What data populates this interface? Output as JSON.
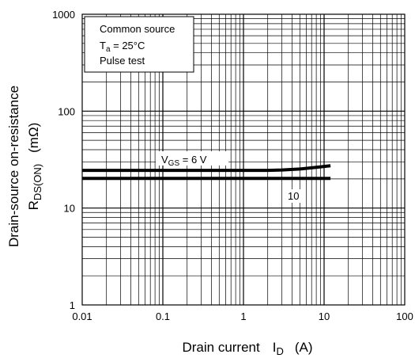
{
  "chart_data": {
    "type": "line",
    "xscale": "log",
    "yscale": "log",
    "xlim": [
      0.01,
      100
    ],
    "ylim": [
      1,
      1000
    ],
    "grid": true,
    "x_ticks": [
      "0.01",
      "0.1",
      "1",
      "10",
      "100"
    ],
    "y_ticks": [
      "1",
      "10",
      "100",
      "1000"
    ],
    "xlabel": {
      "main": "Drain current",
      "symbol": "I",
      "sub": "D",
      "unit": "(A)"
    },
    "ylabel": {
      "main": "Drain-source on-resistance",
      "symbol": "R",
      "sub": "DS(ON)",
      "unit": "(mΩ)"
    },
    "conditions": [
      {
        "text": "Common source"
      },
      {
        "pre": "T",
        "sub": "a",
        "post": " = 25°C"
      },
      {
        "text": "Pulse test"
      }
    ],
    "series": [
      {
        "name": "VGS = 6 V",
        "label": {
          "pre": "V",
          "sub": "GS",
          "post": " = 6 V"
        },
        "x": [
          0.01,
          0.1,
          1,
          2,
          3,
          5,
          8,
          12
        ],
        "y": [
          24.5,
          24.5,
          24.5,
          24.5,
          24.7,
          25.3,
          26.3,
          27.3
        ]
      },
      {
        "name": "10",
        "label": {
          "pre": "10",
          "sub": "",
          "post": ""
        },
        "x": [
          0.01,
          0.1,
          1,
          10,
          12
        ],
        "y": [
          20.2,
          20.2,
          20.2,
          20.2,
          20.2
        ]
      }
    ],
    "colors": {
      "line": "#000000",
      "grid": "#000000",
      "background": "#ffffff"
    }
  }
}
